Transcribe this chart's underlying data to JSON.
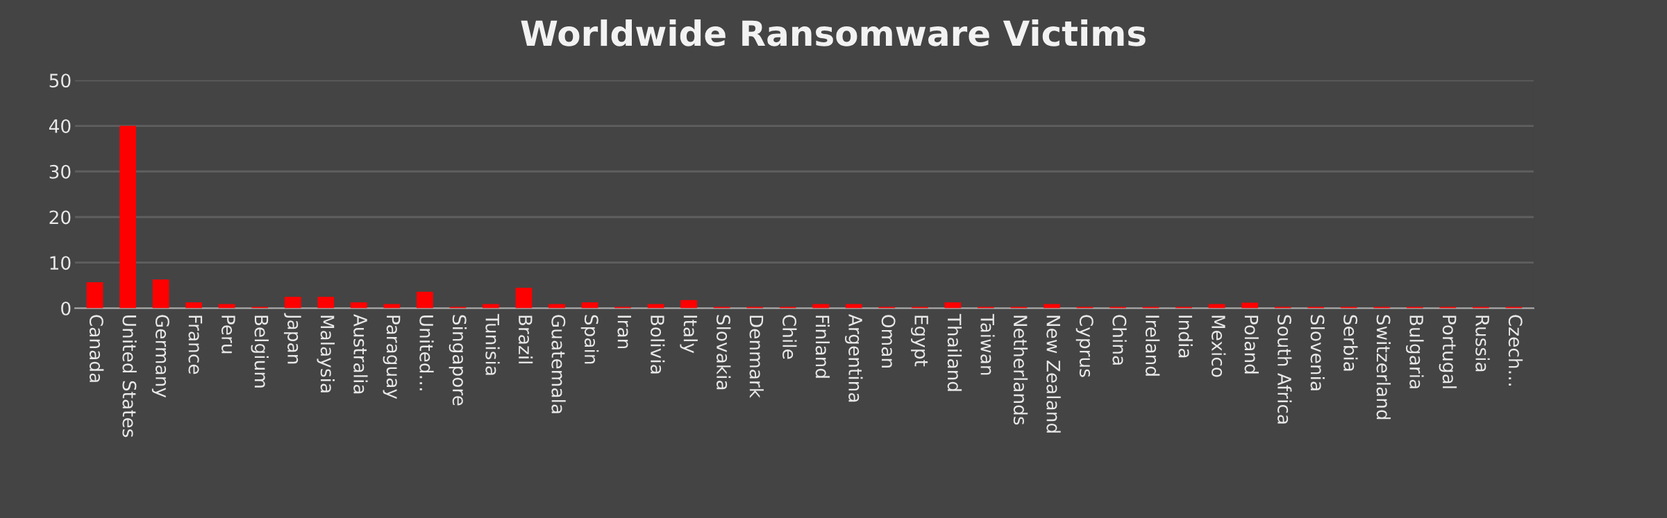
{
  "chart_data": {
    "type": "bar",
    "title": "Worldwide Ransomware Victims",
    "categories": [
      "Canada",
      "United States",
      "Germany",
      "France",
      "Peru",
      "Belgium",
      "Japan",
      "Malaysia",
      "Australia",
      "Paraguay",
      "United…",
      "Singapore",
      "Tunisia",
      "Brazil",
      "Guatemala",
      "Spain",
      "Iran",
      "Bolivia",
      "Italy",
      "Slovakia",
      "Denmark",
      "Chile",
      "Finland",
      "Argentina",
      "Oman",
      "Egypt",
      "Thailand",
      "Taiwan",
      "Netherlands",
      "New Zealand",
      "Cyprus",
      "China",
      "Ireland",
      "India",
      "Mexico",
      "Poland",
      "South Africa",
      "Slovenia",
      "Serbia",
      "Switzerland",
      "Bulgaria",
      "Portugal",
      "Russia",
      "Czech…"
    ],
    "values": [
      5.7,
      40,
      6.3,
      1.3,
      0.9,
      0.3,
      2.5,
      2.5,
      1.3,
      0.9,
      3.6,
      0.3,
      0.9,
      4.5,
      0.9,
      1.3,
      0.3,
      0.9,
      1.8,
      0.3,
      0.3,
      0.3,
      0.9,
      0.9,
      0.3,
      0.3,
      1.3,
      0.3,
      0.3,
      0.9,
      0.3,
      0.3,
      0.3,
      0.3,
      0.9,
      1.2,
      0.3,
      0.3,
      0.3,
      0.3,
      0.3,
      0.3,
      0.3,
      0.3
    ],
    "color": "#ff0000",
    "ylim": [
      0,
      50
    ],
    "yticks": [
      0,
      10,
      20,
      30,
      40,
      50
    ],
    "grid": "y"
  }
}
